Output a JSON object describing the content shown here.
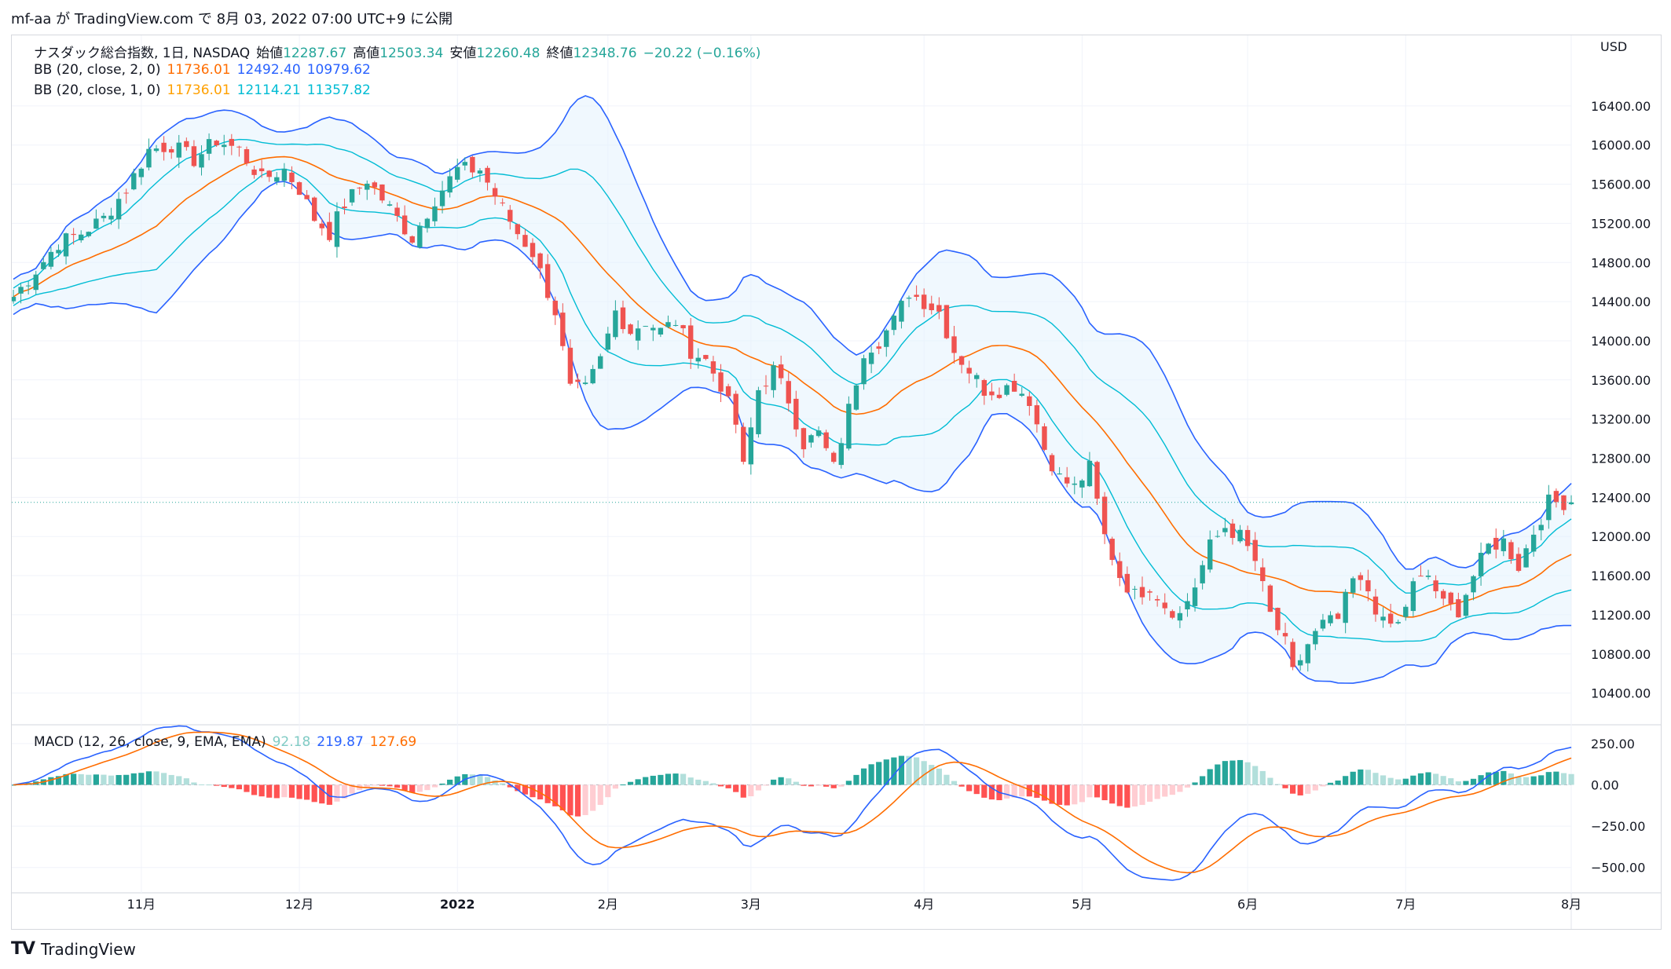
{
  "header": {
    "publish_line": "mf-aa が TradingView.com で 8月 03, 2022 07:00 UTC+9 に公開"
  },
  "legend": {
    "main": {
      "symbol": "ナスダック総合指数, 1日, NASDAQ",
      "open_label": "始値",
      "open": "12287.67",
      "high_label": "高値",
      "high": "12503.34",
      "low_label": "安値",
      "low": "12260.48",
      "close_label": "終値",
      "close": "12348.76",
      "change": "−20.22 (−0.16%)"
    },
    "bb2": {
      "name": "BB (20, close, 2, 0)",
      "basis": "11736.01",
      "upper": "12492.40",
      "lower": "10979.62"
    },
    "bb1": {
      "name": "BB (20, close, 1, 0)",
      "basis": "11736.01",
      "upper": "12114.21",
      "lower": "11357.82"
    },
    "macd": {
      "name": "MACD (12, 26, close, 9, EMA, EMA)",
      "hist": "92.18",
      "macd": "219.87",
      "signal": "127.69"
    }
  },
  "colors": {
    "up": "#26a69a",
    "down": "#ef5350",
    "bb2_band": "#2962ff",
    "bb1_band": "#00bcd4",
    "basis": "#ff6d00",
    "band_fill": "#e3f2fd",
    "macd_line": "#2962ff",
    "signal_line": "#ff6d00",
    "hist_up_strong": "#26a69a",
    "hist_up_weak": "#b2dfdb",
    "hist_down_strong": "#ff5252",
    "hist_down_weak": "#ffcdd2"
  },
  "footer": {
    "brand": "TradingView",
    "logo_text": "TV"
  },
  "chart_data": {
    "type": "candlestick",
    "currency": "USD",
    "price_axis": {
      "ylim": [
        10100,
        16800
      ],
      "ticks": [
        10400,
        10800,
        11200,
        11600,
        12000,
        12400,
        12800,
        13200,
        13600,
        14000,
        14400,
        14800,
        15200,
        15600,
        16000,
        16400
      ],
      "tick_labels": [
        "10400.00",
        "10800.00",
        "11200.00",
        "11600.00",
        "12000.00",
        "12400.00",
        "12800.00",
        "13200.00",
        "13600.00",
        "14000.00",
        "14400.00",
        "14800.00",
        "15200.00",
        "15600.00",
        "16000.00",
        "16400.00"
      ]
    },
    "macd_axis": {
      "ylim": [
        -620,
        330
      ],
      "ticks": [
        250,
        0,
        -250,
        -500
      ],
      "tick_labels": [
        "250.00",
        "0.00",
        "−250.00",
        "−500.00"
      ]
    },
    "time_axis": {
      "labels": [
        "11月",
        "12月",
        "2022",
        "2月",
        "3月",
        "4月",
        "5月",
        "6月",
        "7月",
        "8月"
      ],
      "label_index": [
        17,
        38,
        59,
        79,
        98,
        121,
        142,
        164,
        185,
        207
      ]
    },
    "last_price": 12348.76,
    "close_anchors": [
      [
        0,
        14450
      ],
      [
        3,
        14720
      ],
      [
        6,
        15000
      ],
      [
        9,
        15100
      ],
      [
        12,
        15250
      ],
      [
        15,
        15550
      ],
      [
        18,
        15950
      ],
      [
        21,
        16000
      ],
      [
        24,
        15850
      ],
      [
        27,
        16050
      ],
      [
        30,
        15950
      ],
      [
        33,
        15650
      ],
      [
        36,
        15750
      ],
      [
        38,
        15550
      ],
      [
        40,
        15250
      ],
      [
        42,
        15100
      ],
      [
        44,
        15400
      ],
      [
        47,
        15650
      ],
      [
        50,
        15350
      ],
      [
        53,
        15050
      ],
      [
        56,
        15450
      ],
      [
        59,
        15750
      ],
      [
        62,
        15750
      ],
      [
        65,
        15350
      ],
      [
        67,
        15100
      ],
      [
        69,
        14900
      ],
      [
        72,
        14300
      ],
      [
        74,
        13500
      ],
      [
        76,
        13500
      ],
      [
        78,
        13800
      ],
      [
        80,
        14300
      ],
      [
        82,
        14100
      ],
      [
        84,
        14200
      ],
      [
        86,
        14100
      ],
      [
        88,
        14200
      ],
      [
        90,
        13900
      ],
      [
        92,
        13800
      ],
      [
        94,
        13550
      ],
      [
        96,
        13150
      ],
      [
        97,
        12700
      ],
      [
        99,
        13500
      ],
      [
        101,
        13700
      ],
      [
        103,
        13400
      ],
      [
        105,
        12950
      ],
      [
        107,
        13050
      ],
      [
        109,
        12700
      ],
      [
        111,
        13300
      ],
      [
        113,
        13900
      ],
      [
        115,
        14000
      ],
      [
        117,
        14200
      ],
      [
        119,
        14500
      ],
      [
        121,
        14400
      ],
      [
        123,
        14300
      ],
      [
        125,
        13900
      ],
      [
        127,
        13700
      ],
      [
        129,
        13500
      ],
      [
        131,
        13500
      ],
      [
        133,
        13550
      ],
      [
        135,
        13400
      ],
      [
        137,
        12900
      ],
      [
        139,
        12600
      ],
      [
        141,
        12500
      ],
      [
        143,
        12700
      ],
      [
        145,
        12000
      ],
      [
        147,
        11600
      ],
      [
        149,
        11400
      ],
      [
        151,
        11500
      ],
      [
        153,
        11300
      ],
      [
        155,
        11200
      ],
      [
        157,
        11500
      ],
      [
        159,
        11900
      ],
      [
        161,
        12100
      ],
      [
        163,
        12000
      ],
      [
        165,
        11750
      ],
      [
        167,
        11200
      ],
      [
        169,
        10900
      ],
      [
        170,
        10600
      ],
      [
        172,
        10900
      ],
      [
        174,
        11100
      ],
      [
        176,
        11150
      ],
      [
        178,
        11550
      ],
      [
        180,
        11450
      ],
      [
        182,
        11100
      ],
      [
        184,
        11100
      ],
      [
        186,
        11500
      ],
      [
        188,
        11600
      ],
      [
        190,
        11300
      ],
      [
        192,
        11250
      ],
      [
        194,
        11600
      ],
      [
        196,
        11900
      ],
      [
        198,
        11950
      ],
      [
        200,
        11700
      ],
      [
        202,
        12050
      ],
      [
        204,
        12350
      ],
      [
        206,
        12349
      ]
    ],
    "series": [
      {
        "name": "BB (20, close, 2, 0)",
        "basis": "11736.01",
        "upper": "12492.40",
        "lower": "10979.62"
      },
      {
        "name": "BB (20, close, 1, 0)",
        "basis": "11736.01",
        "upper": "12114.21",
        "lower": "11357.82"
      },
      {
        "name": "MACD (12, 26, close, 9, EMA, EMA)",
        "hist": "92.18",
        "macd": "219.87",
        "signal": "127.69"
      }
    ]
  }
}
